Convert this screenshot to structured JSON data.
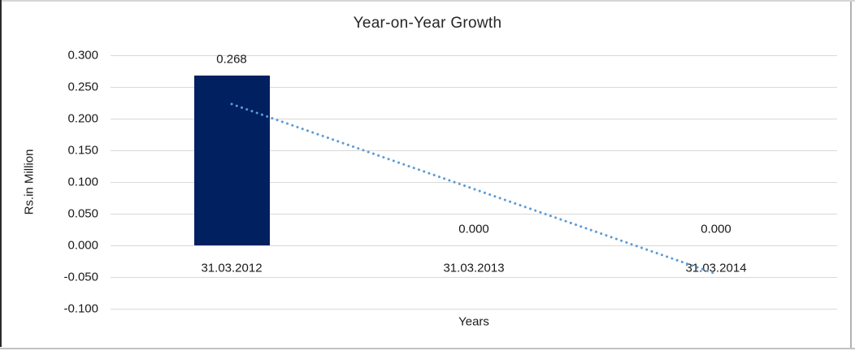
{
  "chart_data": {
    "type": "bar",
    "title": "Year-on-Year Growth",
    "xlabel": "Years",
    "ylabel": "Rs.in Million",
    "categories": [
      "31.03.2012",
      "31.03.2013",
      "31.03.2014"
    ],
    "values": [
      0.268,
      0.0,
      0.0
    ],
    "data_labels": [
      "0.268",
      "0.000",
      "0.000"
    ],
    "ytick_labels": [
      "0.300",
      "0.250",
      "0.200",
      "0.150",
      "0.100",
      "0.050",
      "0.000",
      "-0.050",
      "-0.100"
    ],
    "ytick_values": [
      0.3,
      0.25,
      0.2,
      0.15,
      0.1,
      0.05,
      0.0,
      -0.05,
      -0.1
    ],
    "ylim": [
      -0.1,
      0.3
    ],
    "grid": true,
    "legend_position": "none",
    "trendline": {
      "type": "linear",
      "style": "dotted",
      "start_value": 0.223,
      "end_value": -0.045
    },
    "colors": {
      "bar": "#002060",
      "trendline": "#5b9bd5",
      "gridline": "#d9d9d9",
      "text": "#1a1a1a"
    }
  }
}
